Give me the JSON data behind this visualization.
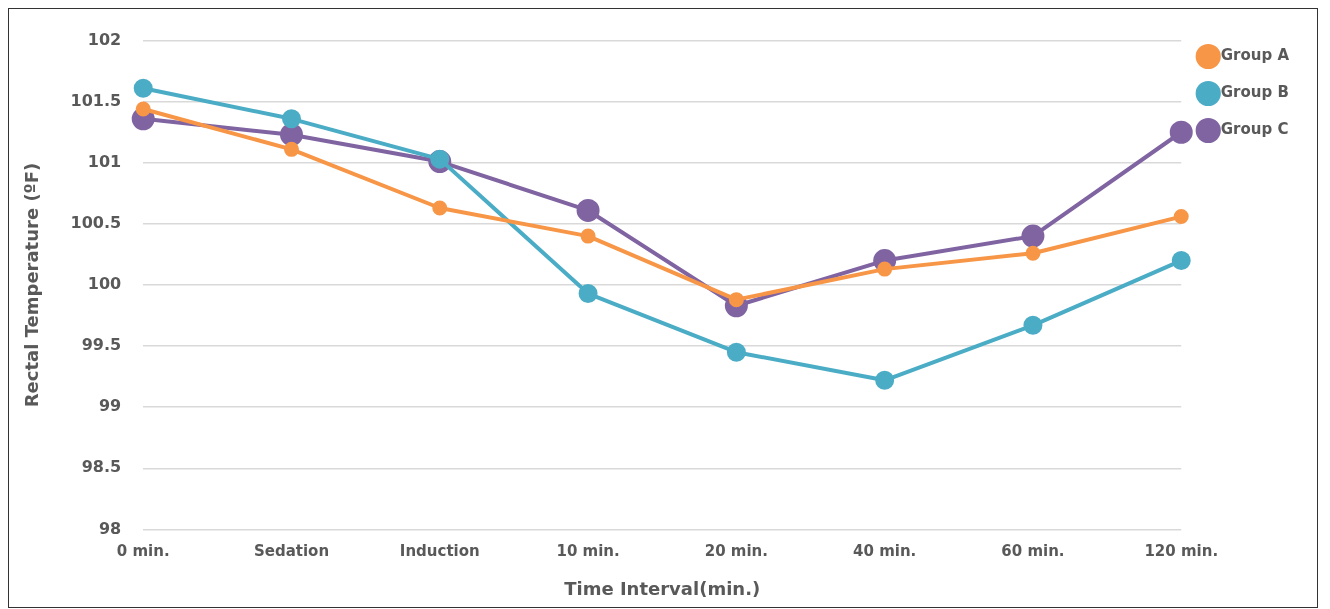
{
  "chart_data": {
    "type": "line",
    "xlabel": "Time Interval(min.)",
    "ylabel": "Rectal Temperature (ºF)",
    "categories": [
      "0 min.",
      "Sedation",
      "Induction",
      "10 min.",
      "20 min.",
      "40 min.",
      "60 min.",
      "120 min."
    ],
    "series": [
      {
        "name": "Group A",
        "color": "#f79646",
        "values": [
          101.44,
          101.11,
          100.63,
          100.4,
          99.88,
          100.13,
          100.26,
          100.56
        ]
      },
      {
        "name": "Group B",
        "color": "#4bacc6",
        "values": [
          101.61,
          101.36,
          101.03,
          99.93,
          99.45,
          99.22,
          99.67,
          100.2
        ]
      },
      {
        "name": "Group C",
        "color": "#8064a2",
        "values": [
          101.36,
          101.23,
          101.01,
          100.61,
          99.83,
          100.2,
          100.4,
          101.25
        ]
      }
    ],
    "ylim": [
      98,
      102
    ],
    "yticks": [
      98,
      98.5,
      99,
      99.5,
      100,
      100.5,
      101,
      101.5,
      102
    ],
    "grid": "y",
    "legend": "right",
    "marker": "circle",
    "line_style": "solid"
  }
}
